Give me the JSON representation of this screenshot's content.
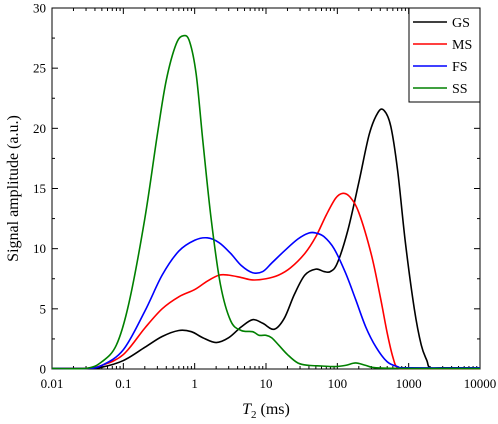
{
  "chart_data": {
    "type": "line",
    "xlabel_italic": "T",
    "xlabel_sub": "2",
    "xlabel_unit": " (ms)",
    "ylabel": "Signal amplitude (a.u.)",
    "x_scale": "log",
    "xlim": [
      0.01,
      10000
    ],
    "ylim": [
      0,
      30
    ],
    "x_ticks": [
      0.01,
      0.1,
      1,
      10,
      100,
      1000,
      10000
    ],
    "x_tick_labels": [
      "0.01",
      "0.1",
      "1",
      "10",
      "100",
      "1000",
      "10000"
    ],
    "y_ticks": [
      0,
      5,
      10,
      15,
      20,
      25,
      30
    ],
    "y_tick_labels": [
      "0",
      "5",
      "10",
      "15",
      "20",
      "25",
      "30"
    ],
    "grid": false,
    "legend_position": "top-right",
    "series": [
      {
        "name": "GS",
        "color": "#000000",
        "points": [
          [
            0.01,
            0.05
          ],
          [
            0.03,
            0.05
          ],
          [
            0.05,
            0.15
          ],
          [
            0.1,
            0.7
          ],
          [
            0.2,
            1.8
          ],
          [
            0.35,
            2.7
          ],
          [
            0.6,
            3.2
          ],
          [
            0.9,
            3.1
          ],
          [
            1.3,
            2.6
          ],
          [
            2,
            2.2
          ],
          [
            3,
            2.6
          ],
          [
            4.5,
            3.5
          ],
          [
            6.5,
            4.1
          ],
          [
            9,
            3.8
          ],
          [
            13,
            3.3
          ],
          [
            18,
            4.2
          ],
          [
            25,
            6.2
          ],
          [
            35,
            7.8
          ],
          [
            50,
            8.3
          ],
          [
            65,
            8.1
          ],
          [
            80,
            8.1
          ],
          [
            100,
            8.8
          ],
          [
            140,
            11.5
          ],
          [
            200,
            15.5
          ],
          [
            280,
            19.5
          ],
          [
            370,
            21.3
          ],
          [
            450,
            21.5
          ],
          [
            560,
            20.2
          ],
          [
            700,
            16.5
          ],
          [
            900,
            10.5
          ],
          [
            1200,
            5.0
          ],
          [
            1500,
            2.0
          ],
          [
            1800,
            0.7
          ],
          [
            2000,
            0.1
          ],
          [
            3000,
            0.1
          ],
          [
            10000,
            0.1
          ]
        ]
      },
      {
        "name": "MS",
        "color": "#ff0000",
        "points": [
          [
            0.01,
            0.05
          ],
          [
            0.03,
            0.05
          ],
          [
            0.05,
            0.3
          ],
          [
            0.1,
            1.2
          ],
          [
            0.2,
            3.4
          ],
          [
            0.35,
            5.0
          ],
          [
            0.6,
            6.0
          ],
          [
            1,
            6.6
          ],
          [
            1.5,
            7.3
          ],
          [
            2.2,
            7.8
          ],
          [
            3,
            7.8
          ],
          [
            4.5,
            7.6
          ],
          [
            6.5,
            7.4
          ],
          [
            10,
            7.5
          ],
          [
            15,
            7.8
          ],
          [
            22,
            8.4
          ],
          [
            35,
            9.6
          ],
          [
            50,
            11.0
          ],
          [
            70,
            12.8
          ],
          [
            95,
            14.2
          ],
          [
            120,
            14.6
          ],
          [
            150,
            14.3
          ],
          [
            200,
            13.0
          ],
          [
            300,
            9.5
          ],
          [
            400,
            6.0
          ],
          [
            500,
            3.0
          ],
          [
            600,
            1.0
          ],
          [
            700,
            0.1
          ],
          [
            1000,
            0.05
          ],
          [
            10000,
            0.05
          ]
        ]
      },
      {
        "name": "FS",
        "color": "#0000ff",
        "points": [
          [
            0.01,
            0.05
          ],
          [
            0.03,
            0.05
          ],
          [
            0.05,
            0.3
          ],
          [
            0.1,
            1.6
          ],
          [
            0.2,
            4.8
          ],
          [
            0.35,
            7.8
          ],
          [
            0.6,
            9.8
          ],
          [
            1,
            10.7
          ],
          [
            1.5,
            10.9
          ],
          [
            2.2,
            10.5
          ],
          [
            3.2,
            9.6
          ],
          [
            4.5,
            8.6
          ],
          [
            6.5,
            8.0
          ],
          [
            9,
            8.1
          ],
          [
            12,
            8.8
          ],
          [
            18,
            9.8
          ],
          [
            28,
            10.8
          ],
          [
            40,
            11.3
          ],
          [
            50,
            11.3
          ],
          [
            65,
            11.0
          ],
          [
            90,
            10.0
          ],
          [
            130,
            8.0
          ],
          [
            180,
            5.8
          ],
          [
            250,
            3.5
          ],
          [
            350,
            1.8
          ],
          [
            500,
            0.6
          ],
          [
            700,
            0.2
          ],
          [
            1000,
            0.1
          ],
          [
            10000,
            0.1
          ]
        ]
      },
      {
        "name": "SS",
        "color": "#008000",
        "points": [
          [
            0.01,
            0.05
          ],
          [
            0.03,
            0.05
          ],
          [
            0.05,
            0.6
          ],
          [
            0.08,
            2.0
          ],
          [
            0.12,
            5.5
          ],
          [
            0.2,
            12.5
          ],
          [
            0.3,
            19.5
          ],
          [
            0.4,
            24.0
          ],
          [
            0.55,
            27.0
          ],
          [
            0.7,
            27.7
          ],
          [
            0.85,
            27.2
          ],
          [
            1.05,
            24.5
          ],
          [
            1.3,
            19.0
          ],
          [
            1.7,
            12.5
          ],
          [
            2.3,
            7.0
          ],
          [
            3.2,
            4.0
          ],
          [
            4.5,
            3.2
          ],
          [
            6.5,
            3.1
          ],
          [
            8,
            2.8
          ],
          [
            10,
            2.8
          ],
          [
            12,
            2.6
          ],
          [
            15,
            2.0
          ],
          [
            20,
            1.2
          ],
          [
            28,
            0.5
          ],
          [
            40,
            0.3
          ],
          [
            60,
            0.25
          ],
          [
            90,
            0.2
          ],
          [
            130,
            0.3
          ],
          [
            180,
            0.5
          ],
          [
            250,
            0.3
          ],
          [
            350,
            0.1
          ],
          [
            1000,
            0.05
          ],
          [
            10000,
            0.05
          ]
        ]
      }
    ]
  }
}
